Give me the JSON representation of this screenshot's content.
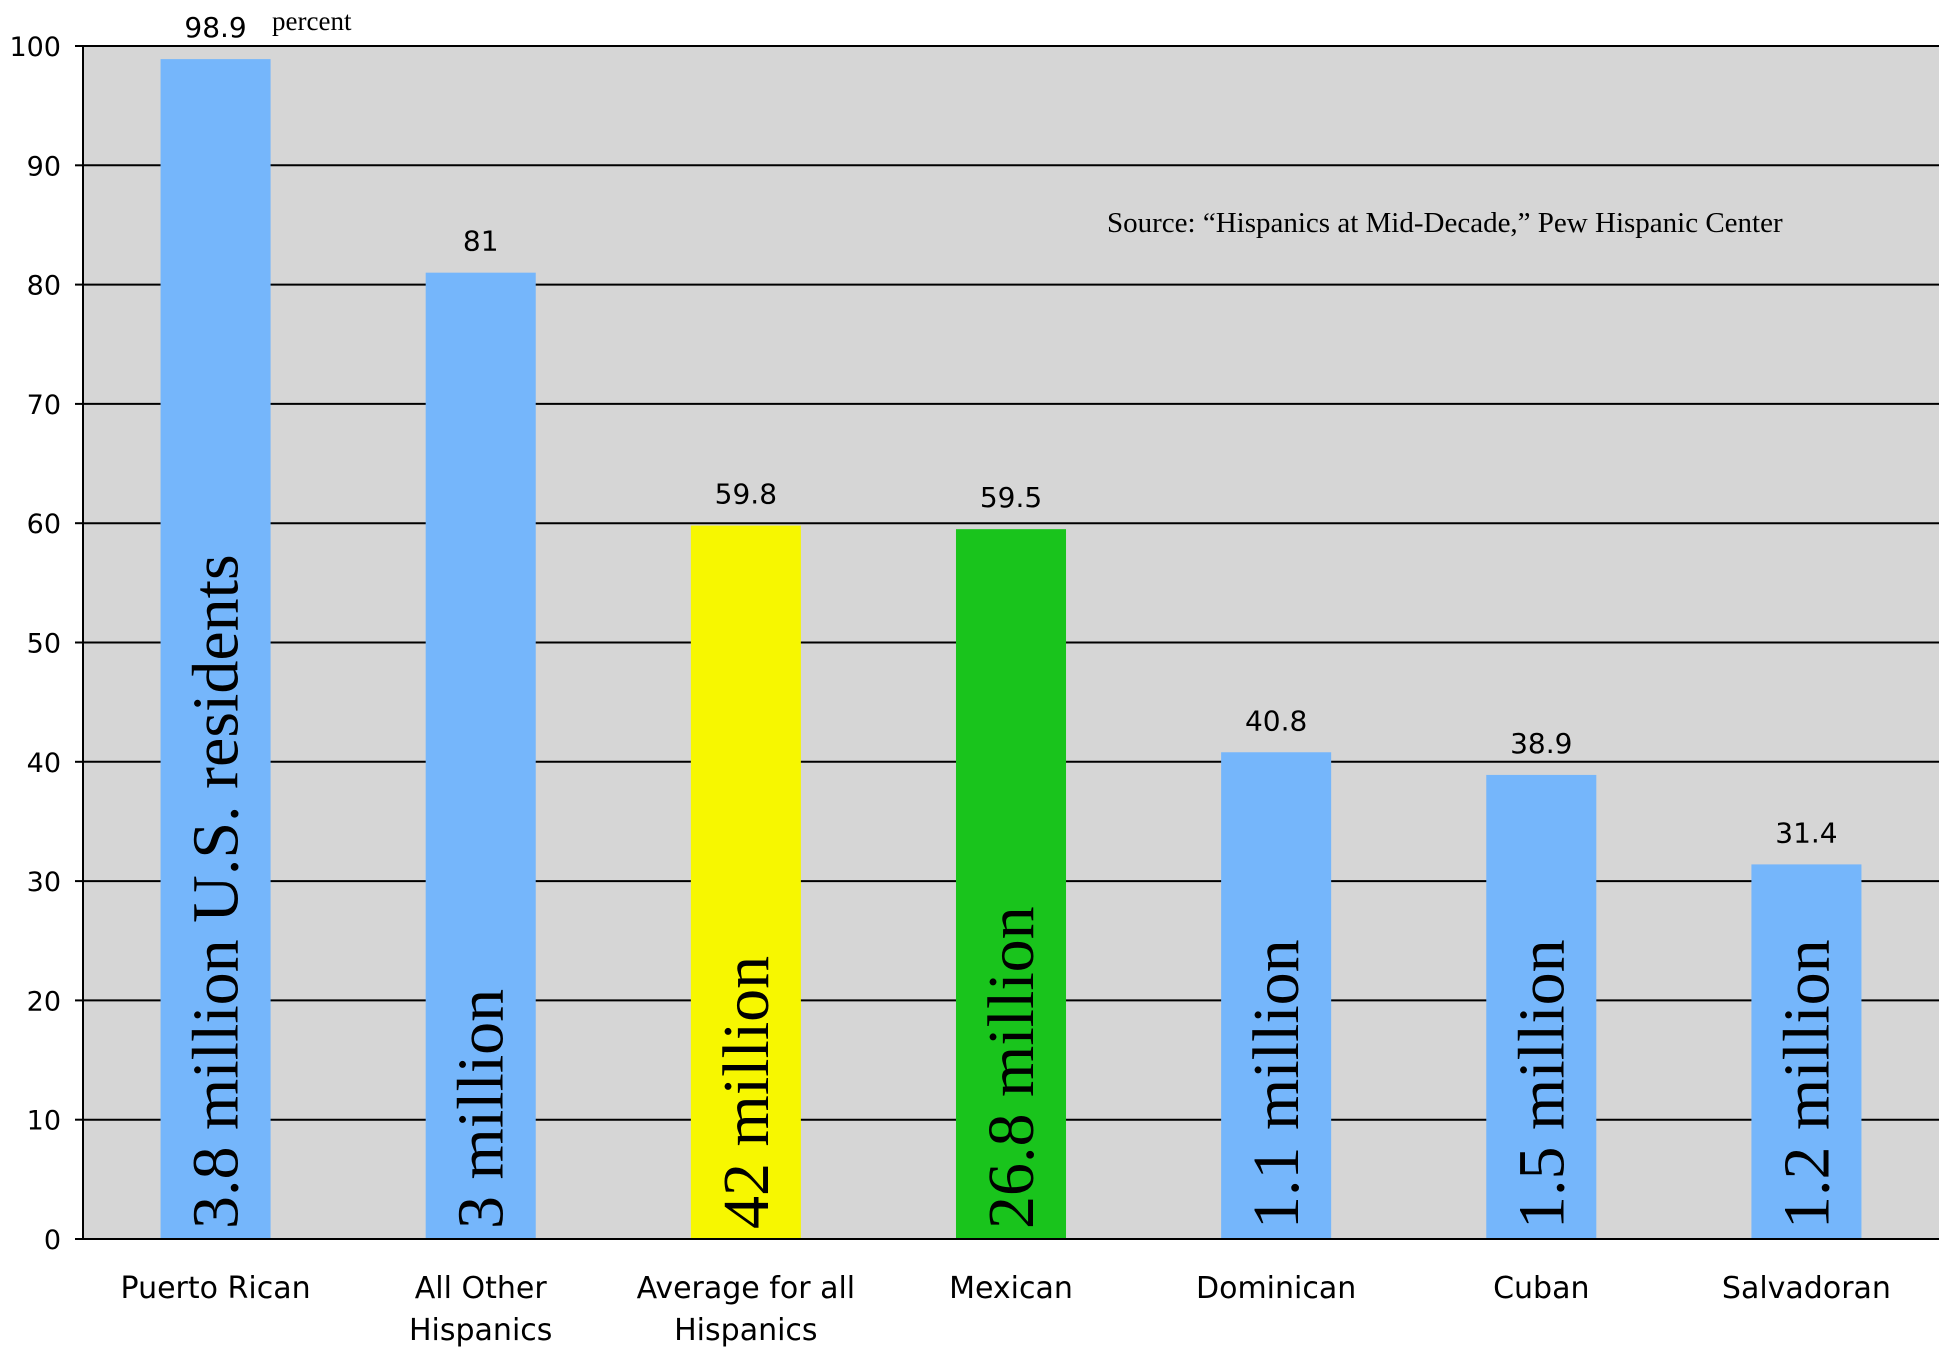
{
  "chart_data": {
    "type": "bar",
    "ylim": [
      0,
      100
    ],
    "yticks": [
      0,
      10,
      20,
      30,
      40,
      50,
      60,
      70,
      80,
      90,
      100
    ],
    "grid": true,
    "unit_note": "percent",
    "source": "Source: “Hispanics at Mid-Decade,” Pew Hispanic Center",
    "categories": [
      [
        "Puerto Rican"
      ],
      [
        "All Other",
        "Hispanics"
      ],
      [
        "Average for all",
        "Hispanics"
      ],
      [
        "Mexican"
      ],
      [
        "Dominican"
      ],
      [
        "Cuban"
      ],
      [
        "Salvadoran"
      ]
    ],
    "values": [
      98.9,
      81,
      59.8,
      59.5,
      40.8,
      38.9,
      31.4
    ],
    "value_labels": [
      "98.9",
      "81",
      "59.8",
      "59.5",
      "40.8",
      "38.9",
      "31.4"
    ],
    "bar_labels": [
      "3.8 million U.S. residents",
      "3 million",
      "42 million",
      "26.8 million",
      "1.1 million",
      "1.5 million",
      "1.2 million"
    ],
    "colors": [
      "#75b6fb",
      "#75b6fb",
      "#f7f700",
      "#19c41c",
      "#75b6fb",
      "#75b6fb",
      "#75b6fb"
    ],
    "plot_background": "#d6d6d6"
  }
}
